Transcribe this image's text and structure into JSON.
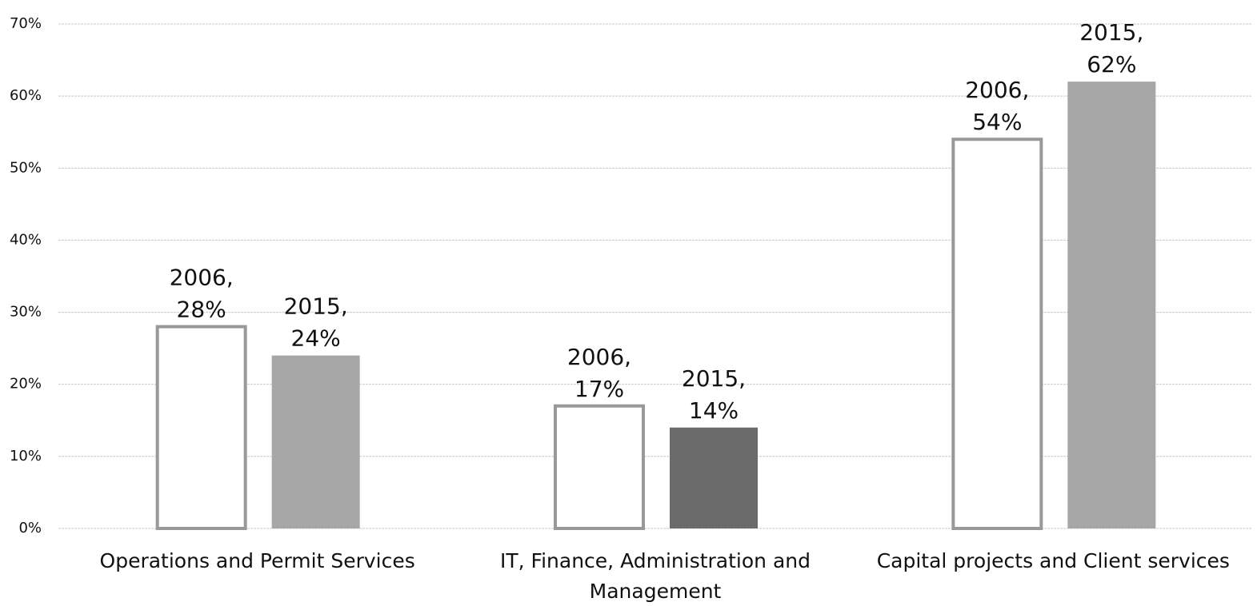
{
  "chart_data": {
    "type": "bar",
    "categories": [
      "Operations and Permit Services",
      "IT, Finance, Administration and Management",
      "Capital projects and Client services"
    ],
    "series": [
      {
        "name": "2006",
        "color": "#ffffff",
        "stroke": "#999999",
        "values": [
          28,
          17,
          54
        ],
        "value_labels": [
          "2006, 28%",
          "2006, 17%",
          "2006, 54%"
        ]
      },
      {
        "name": "2015",
        "color": "#a6a6a6",
        "colors": [
          "#a6a6a6",
          "#6b6b6b",
          "#a6a6a6"
        ],
        "values": [
          24,
          14,
          62
        ],
        "value_labels": [
          "2015, 24%",
          "2015, 14%",
          "2015, 62%"
        ]
      }
    ],
    "ylim": [
      0,
      70
    ],
    "yticks": [
      {
        "value": 0,
        "label": "0%"
      },
      {
        "value": 10,
        "label": "10%"
      },
      {
        "value": 20,
        "label": "20%"
      },
      {
        "value": 30,
        "label": "30%"
      },
      {
        "value": 40,
        "label": "40%"
      },
      {
        "value": 50,
        "label": "50%"
      },
      {
        "value": 60,
        "label": "60%"
      },
      {
        "value": 70,
        "label": "70%"
      }
    ],
    "grid": true
  }
}
